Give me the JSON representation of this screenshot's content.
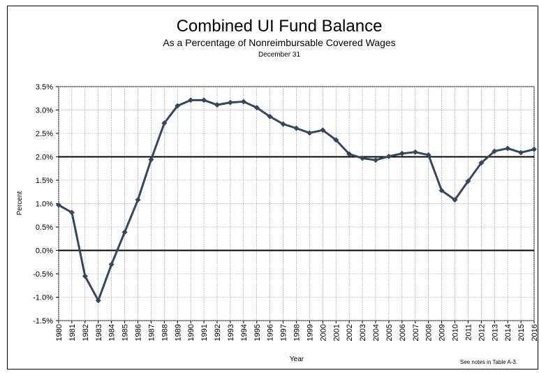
{
  "chart_data": {
    "type": "line",
    "title": "Combined UI Fund Balance",
    "subtitle": "As a Percentage of Nonreimbursable Covered Wages",
    "date_note": "December 31",
    "ylabel": "Percent",
    "xlabel": "Year",
    "note": "See notes  in Table A-3.",
    "categories": [
      "1980",
      "1981",
      "1982",
      "1983",
      "1984",
      "1985",
      "1986",
      "1987",
      "1988",
      "1989",
      "1990",
      "1991",
      "1992",
      "1993",
      "1994",
      "1995",
      "1996",
      "1997",
      "1998",
      "1999",
      "2000",
      "2001",
      "2002",
      "2003",
      "2004",
      "2005",
      "2006",
      "2007",
      "2008",
      "2009",
      "2010",
      "2011",
      "2012",
      "2013",
      "2014",
      "2015",
      "2016"
    ],
    "series": [
      {
        "color": "#3a4656",
        "values": [
          0.97,
          0.81,
          -0.55,
          -1.07,
          -0.3,
          0.39,
          1.08,
          1.94,
          2.72,
          3.09,
          3.21,
          3.21,
          3.11,
          3.16,
          3.18,
          3.05,
          2.86,
          2.7,
          2.61,
          2.51,
          2.57,
          2.36,
          2.06,
          1.97,
          1.93,
          2.01,
          2.07,
          2.1,
          2.04,
          1.28,
          1.08,
          1.48,
          1.87,
          2.12,
          2.18,
          2.09,
          2.16
        ]
      }
    ],
    "ylim": [
      -1.5,
      3.5
    ],
    "yticks": [
      {
        "value": -1.5,
        "label": "-1.5%"
      },
      {
        "value": -1.0,
        "label": "-1.0%"
      },
      {
        "value": -0.5,
        "label": "-0.5%"
      },
      {
        "value": 0,
        "label": "0.0%"
      },
      {
        "value": 0.5,
        "label": "0.5%"
      },
      {
        "value": 1.0,
        "label": "1.0%"
      },
      {
        "value": 1.5,
        "label": "1.5%"
      },
      {
        "value": 2.0,
        "label": "2.0%"
      },
      {
        "value": 2.5,
        "label": "2.5%"
      },
      {
        "value": 3.0,
        "label": "3.0%"
      },
      {
        "value": 3.5,
        "label": "3.5%"
      }
    ],
    "reference_lines": [
      0,
      2.0
    ],
    "grid": true
  }
}
